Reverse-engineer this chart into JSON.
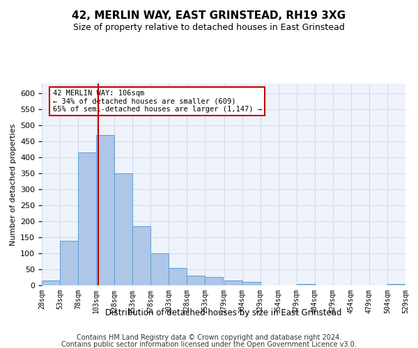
{
  "title": "42, MERLIN WAY, EAST GRINSTEAD, RH19 3XG",
  "subtitle": "Size of property relative to detached houses in East Grinstead",
  "xlabel": "Distribution of detached houses by size in East Grinstead",
  "ylabel": "Number of detached properties",
  "footer_line1": "Contains HM Land Registry data © Crown copyright and database right 2024.",
  "footer_line2": "Contains public sector information licensed under the Open Government Licence v3.0.",
  "annotation_line1": "42 MERLIN WAY: 106sqm",
  "annotation_line2": "← 34% of detached houses are smaller (609)",
  "annotation_line3": "65% of semi-detached houses are larger (1,147) →",
  "bar_color": "#aec6e8",
  "bar_edge_color": "#5a9fd4",
  "vline_color": "#c00000",
  "vline_x": 106,
  "bin_edges": [
    28,
    53,
    78,
    103,
    128,
    153,
    178,
    203,
    228,
    253,
    279,
    304,
    329,
    354,
    379,
    404,
    429,
    454,
    479,
    504,
    529
  ],
  "bar_heights": [
    15,
    140,
    415,
    470,
    350,
    185,
    100,
    55,
    30,
    25,
    15,
    10,
    0,
    0,
    5,
    0,
    0,
    0,
    0,
    5
  ],
  "ylim": [
    0,
    630
  ],
  "yticks": [
    0,
    50,
    100,
    150,
    200,
    250,
    300,
    350,
    400,
    450,
    500,
    550,
    600
  ],
  "grid_color": "#d0d8e8",
  "bg_color": "#eef2fa",
  "fig_bg_color": "#ffffff"
}
